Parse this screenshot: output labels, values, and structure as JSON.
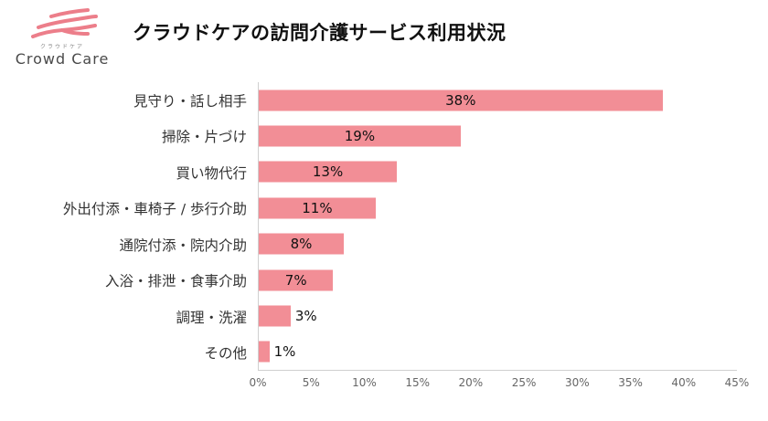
{
  "logo": {
    "brand": "Crowd Care",
    "sub": "クラウドケア",
    "accent_color": "#ec7e8a"
  },
  "header": {
    "title": "クラウドケアの訪問介護サービス利用状況"
  },
  "chart_data": {
    "type": "bar",
    "orientation": "horizontal",
    "title": "クラウドケアの訪問介護サービス利用状況",
    "categories": [
      "見守り・話し相手",
      "掃除・片づけ",
      "買い物代行",
      "外出付添・車椅子 / 歩行介助",
      "通院付添・院内介助",
      "入浴・排泄・食事介助",
      "調理・洗濯",
      "その他"
    ],
    "values": [
      38,
      19,
      13,
      11,
      8,
      7,
      3,
      1
    ],
    "value_labels": [
      "38%",
      "19%",
      "13%",
      "11%",
      "8%",
      "7%",
      "3%",
      "1%"
    ],
    "xlim": [
      0,
      45
    ],
    "x_tick_step": 5,
    "x_ticks": [
      "0%",
      "5%",
      "10%",
      "15%",
      "20%",
      "25%",
      "30%",
      "35%",
      "40%",
      "45%"
    ],
    "bar_color": "#f28e96",
    "grid": false,
    "legend": false,
    "xlabel": "",
    "ylabel": ""
  }
}
